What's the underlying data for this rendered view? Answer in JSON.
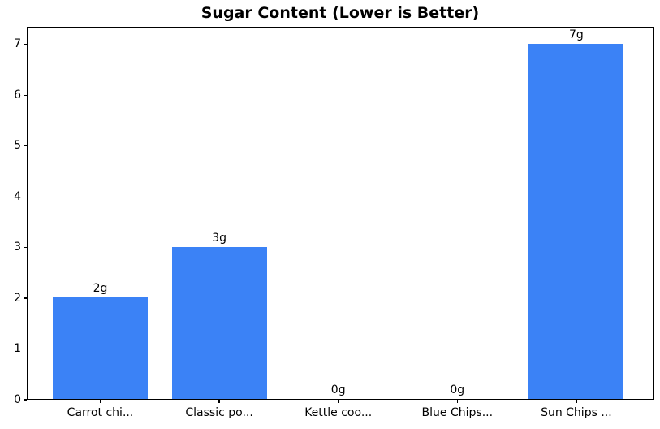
{
  "chart_data": {
    "type": "bar",
    "title": "Sugar Content (Lower is Better)",
    "categories": [
      "Carrot chi...",
      "Classic po...",
      "Kettle coo...",
      "Blue Chips...",
      "Sun Chips ..."
    ],
    "values": [
      2,
      3,
      0,
      0,
      7
    ],
    "bar_labels": [
      "2g",
      "3g",
      "0g",
      "0g",
      "7g"
    ],
    "xlabel": "",
    "ylabel": "",
    "yticks": [
      0,
      1,
      2,
      3,
      4,
      5,
      6,
      7
    ],
    "ylim": [
      0,
      7.35
    ],
    "grid": false,
    "legend": null,
    "bar_color": "#3b82f6",
    "spine_color": "#000000",
    "background_color": "#ffffff",
    "text_color": "#000000"
  }
}
